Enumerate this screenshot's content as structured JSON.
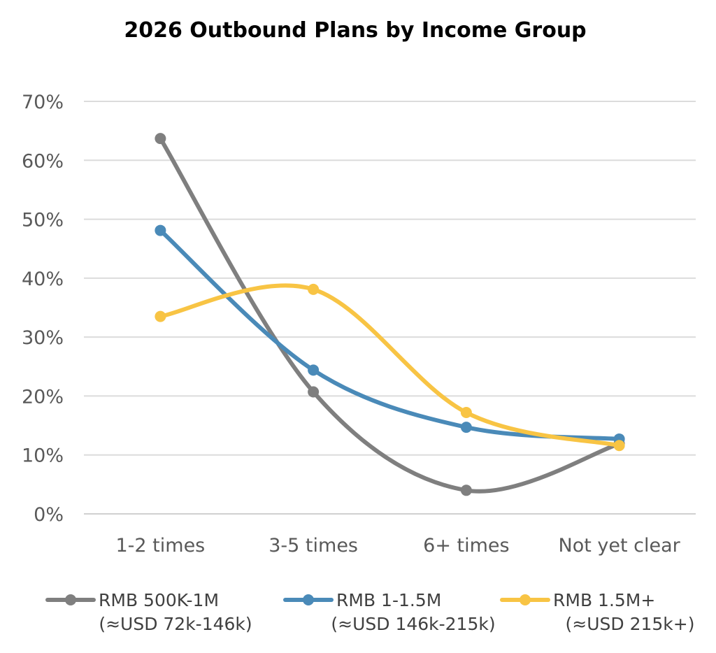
{
  "chart_data": {
    "type": "line",
    "smooth": true,
    "title": "2026 Outbound Plans by Income Group",
    "xlabel": "",
    "ylabel": "",
    "categories": [
      "1-2 times",
      "3-5 times",
      "6+ times",
      "Not yet clear"
    ],
    "ylim": [
      0,
      70
    ],
    "yticks": [
      0,
      10,
      20,
      30,
      40,
      50,
      60,
      70
    ],
    "ytick_labels": [
      "0%",
      "10%",
      "20%",
      "30%",
      "40%",
      "50%",
      "60%",
      "70%"
    ],
    "grid": true,
    "legend_position": "bottom",
    "series": [
      {
        "name": "RMB 500K-1M",
        "sub": "(≈USD 72k-146k)",
        "color": "#7f7f7f",
        "values": [
          63.7,
          20.7,
          4.0,
          11.9
        ]
      },
      {
        "name": "RMB 1-1.5M",
        "sub": "(≈USD 146k-215k)",
        "color": "#4a8ab8",
        "values": [
          48.1,
          24.4,
          14.7,
          12.7
        ]
      },
      {
        "name": "RMB 1.5M+",
        "sub": "(≈USD 215k+)",
        "color": "#f8c444",
        "values": [
          33.5,
          38.1,
          17.2,
          11.6
        ]
      }
    ]
  }
}
